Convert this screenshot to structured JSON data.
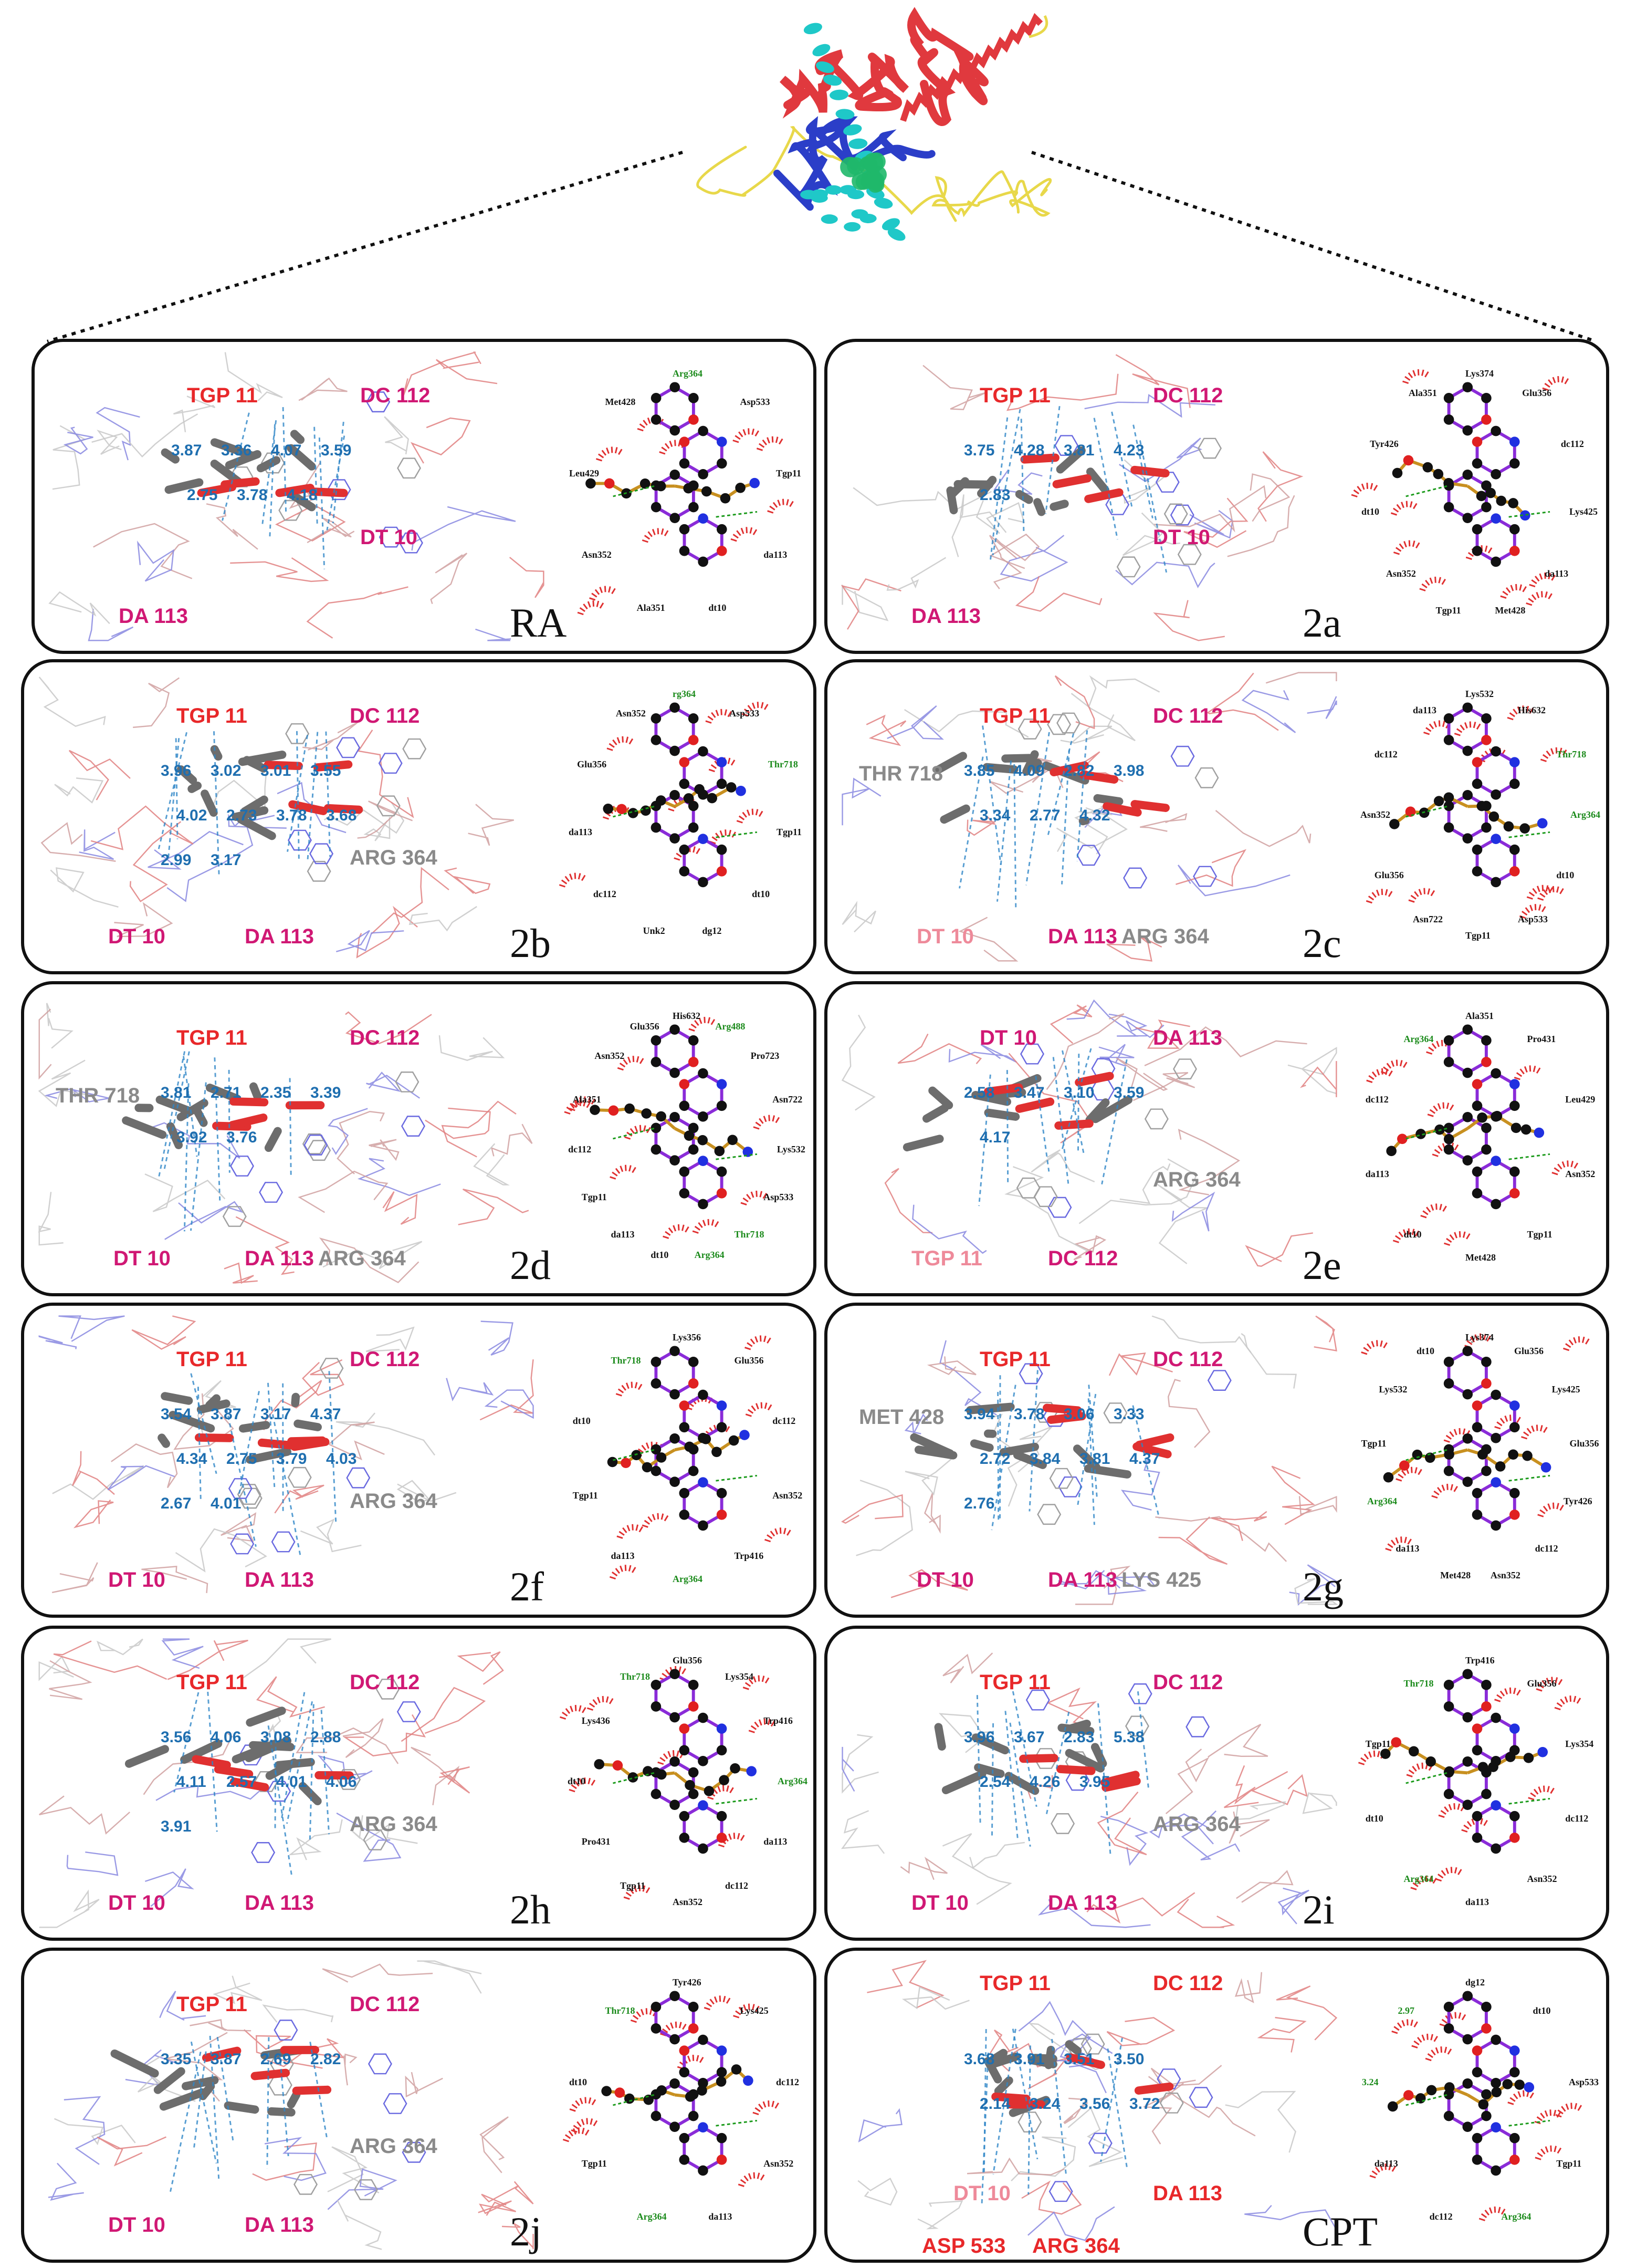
{
  "panels": [
    {
      "id": "RA",
      "label": "RA",
      "residues": [
        {
          "text": "TGP  11",
          "color": "red"
        },
        {
          "text": "DC  112",
          "color": "magenta"
        },
        {
          "text": "DT  10",
          "color": "magenta"
        },
        {
          "text": "DA  113",
          "color": "magenta"
        }
      ],
      "distances": [
        "3.87",
        "3.36",
        "4.07",
        "3.59",
        "2.75",
        "3.78",
        "4.18"
      ],
      "interactions": [
        "Arg364",
        "Asp533",
        "Tgp11",
        "da113",
        "dt10",
        "Ala351",
        "Asn352",
        "Leu429",
        "Met428"
      ]
    },
    {
      "id": "2a",
      "label": "2a",
      "residues": [
        {
          "text": "TGP  11",
          "color": "red"
        },
        {
          "text": "DC  112",
          "color": "magenta"
        },
        {
          "text": "DT  10",
          "color": "magenta"
        },
        {
          "text": "DA  113",
          "color": "magenta"
        }
      ],
      "distances": [
        "3.75",
        "4.28",
        "3.81",
        "4.23",
        "2.83"
      ],
      "interactions": [
        "Lys374",
        "Glu356",
        "dc112",
        "Lys425",
        "da113",
        "Met428",
        "Tgp11",
        "Asn352",
        "dt10",
        "Tyr426",
        "Ala351"
      ]
    },
    {
      "id": "2b",
      "label": "2b",
      "residues": [
        {
          "text": "TGP  11",
          "color": "red"
        },
        {
          "text": "DC  112",
          "color": "magenta"
        },
        {
          "text": "ARG  364",
          "color": "gray"
        },
        {
          "text": "DT  10",
          "color": "magenta"
        },
        {
          "text": "DA  113",
          "color": "magenta"
        }
      ],
      "distances": [
        "3.96",
        "3.02",
        "3.01",
        "3.55",
        "4.02",
        "2.73",
        "3.78",
        "3.68",
        "2.99",
        "3.17"
      ],
      "interactions": [
        "rg364",
        "Asp533",
        "Thr718",
        "Tgp11",
        "dt10",
        "dg12",
        "Unk2",
        "dc112",
        "da113",
        "Glu356",
        "Asn352"
      ]
    },
    {
      "id": "2c",
      "label": "2c",
      "residues": [
        {
          "text": "TGP  11",
          "color": "red"
        },
        {
          "text": "DC  112",
          "color": "magenta"
        },
        {
          "text": "THR  718",
          "color": "gray"
        },
        {
          "text": "ARG  364",
          "color": "gray"
        },
        {
          "text": "DT  10",
          "color": "pink"
        },
        {
          "text": "DA  113",
          "color": "magenta"
        }
      ],
      "distances": [
        "3.85",
        "4.09",
        "2.82",
        "3.98",
        "3.34",
        "2.77",
        "4.32"
      ],
      "interactions": [
        "Lys532",
        "His632",
        "Thr718",
        "Arg364",
        "dt10",
        "Asp533",
        "Tgp11",
        "Asn722",
        "Glu356",
        "Asn352",
        "dc112",
        "da113"
      ]
    },
    {
      "id": "2d",
      "label": "2d",
      "residues": [
        {
          "text": "TGP  11",
          "color": "red"
        },
        {
          "text": "DC  112",
          "color": "magenta"
        },
        {
          "text": "THR  718",
          "color": "gray"
        },
        {
          "text": "ARG  364",
          "color": "gray"
        },
        {
          "text": "DT  10",
          "color": "magenta"
        },
        {
          "text": "DA  113",
          "color": "magenta"
        }
      ],
      "distances": [
        "3.81",
        "2.71",
        "2.35",
        "3.39",
        "3.92",
        "3.76"
      ],
      "interactions": [
        "His632",
        "Arg488",
        "Pro723",
        "Asn722",
        "Lys532",
        "Asp533",
        "Thr718",
        "Arg364",
        "dt10",
        "da113",
        "Tgp11",
        "dc112",
        "Ala351",
        "Asn352",
        "Glu356"
      ]
    },
    {
      "id": "2e",
      "label": "2e",
      "residues": [
        {
          "text": "DT  10",
          "color": "magenta"
        },
        {
          "text": "DA  113",
          "color": "magenta"
        },
        {
          "text": "ARG  364",
          "color": "gray"
        },
        {
          "text": "TGP  11",
          "color": "pink"
        },
        {
          "text": "DC  112",
          "color": "magenta"
        }
      ],
      "distances": [
        "2.58",
        "3.47",
        "3.10",
        "3.59",
        "4.17"
      ],
      "interactions": [
        "Ala351",
        "Pro431",
        "Leu429",
        "Asn352",
        "Tgp11",
        "Met428",
        "dt10",
        "da113",
        "dc112",
        "Arg364"
      ]
    },
    {
      "id": "2f",
      "label": "2f",
      "residues": [
        {
          "text": "TGP  11",
          "color": "red"
        },
        {
          "text": "DC  112",
          "color": "magenta"
        },
        {
          "text": "ARG  364",
          "color": "gray"
        },
        {
          "text": "DT  10",
          "color": "magenta"
        },
        {
          "text": "DA  113",
          "color": "magenta"
        }
      ],
      "distances": [
        "3.54",
        "3.87",
        "3.17",
        "4.37",
        "4.34",
        "2.75",
        "3.79",
        "4.03",
        "2.67",
        "4.01"
      ],
      "interactions": [
        "Lys356",
        "Glu356",
        "dc112",
        "Asn352",
        "Trp416",
        "Arg364",
        "da113",
        "Tgp11",
        "dt10",
        "Thr718"
      ]
    },
    {
      "id": "2g",
      "label": "2g",
      "residues": [
        {
          "text": "TGP  11",
          "color": "red"
        },
        {
          "text": "DC  112",
          "color": "magenta"
        },
        {
          "text": "MET  428",
          "color": "gray"
        },
        {
          "text": "LYS  425",
          "color": "gray"
        },
        {
          "text": "DT  10",
          "color": "magenta"
        },
        {
          "text": "DA  113",
          "color": "magenta"
        }
      ],
      "distances": [
        "3.94",
        "3.78",
        "3.06",
        "3.33",
        "2.72",
        "3.84",
        "3.81",
        "4.37",
        "2.76"
      ],
      "interactions": [
        "Lys374",
        "Glu356",
        "Lys425",
        "Glu356",
        "Tyr426",
        "dc112",
        "Asn352",
        "Met428",
        "da113",
        "Arg364",
        "Tgp11",
        "Lys532",
        "dt10"
      ]
    },
    {
      "id": "2h",
      "label": "2h",
      "residues": [
        {
          "text": "TGP  11",
          "color": "red"
        },
        {
          "text": "DC  112",
          "color": "magenta"
        },
        {
          "text": "ARG  364",
          "color": "gray"
        },
        {
          "text": "DT  10",
          "color": "magenta"
        },
        {
          "text": "DA  113",
          "color": "magenta"
        }
      ],
      "distances": [
        "3.56",
        "4.06",
        "3.08",
        "2.88",
        "4.11",
        "2.57",
        "4.01",
        "4.06",
        "3.91"
      ],
      "interactions": [
        "Glu356",
        "Lys354",
        "Trp416",
        "Arg364",
        "da113",
        "dc112",
        "Asn352",
        "Tgp11",
        "Pro431",
        "dt10",
        "Lys436",
        "Thr718"
      ]
    },
    {
      "id": "2i",
      "label": "2i",
      "residues": [
        {
          "text": "TGP  11",
          "color": "red"
        },
        {
          "text": "DC  112",
          "color": "magenta"
        },
        {
          "text": "ARG  364",
          "color": "gray"
        },
        {
          "text": "DT  10",
          "color": "magenta"
        },
        {
          "text": "DA  113",
          "color": "magenta"
        }
      ],
      "distances": [
        "3.96",
        "3.67",
        "2.83",
        "5.38",
        "2.54",
        "4.26",
        "3.95"
      ],
      "interactions": [
        "Trp416",
        "Glu356",
        "Lys354",
        "dc112",
        "Asn352",
        "da113",
        "Arg364",
        "dt10",
        "Tgp11",
        "Thr718"
      ]
    },
    {
      "id": "2j",
      "label": "2j",
      "residues": [
        {
          "text": "TGP  11",
          "color": "red"
        },
        {
          "text": "DC  112",
          "color": "magenta"
        },
        {
          "text": "ARG  364",
          "color": "gray"
        },
        {
          "text": "DT  10",
          "color": "magenta"
        },
        {
          "text": "DA  113",
          "color": "magenta"
        }
      ],
      "distances": [
        "3.35",
        "3.87",
        "2.69",
        "2.82"
      ],
      "interactions": [
        "Tyr426",
        "Lys425",
        "dc112",
        "Asn352",
        "da113",
        "Arg364",
        "Tgp11",
        "dt10",
        "Thr718"
      ]
    },
    {
      "id": "CPT",
      "label": "CPT",
      "residues": [
        {
          "text": "TGP  11",
          "color": "red"
        },
        {
          "text": "DC  112",
          "color": "red"
        },
        {
          "text": "DT  10",
          "color": "pink"
        },
        {
          "text": "DA  113",
          "color": "red"
        },
        {
          "text": "ASP  533",
          "color": "red"
        },
        {
          "text": "ARG  364",
          "color": "red"
        }
      ],
      "distances": [
        "3.68",
        "3.91",
        "3.51",
        "3.50",
        "2.14",
        "3.24",
        "3.56",
        "3.72"
      ],
      "interactions": [
        "dg12",
        "dt10",
        "Asp533",
        "Tgp11",
        "Arg364",
        "dc112",
        "da113",
        "3.24",
        "2.97"
      ]
    }
  ],
  "colors": {
    "helix": "#e0393e",
    "sheet": "#2b3ec8",
    "coil": "#e8d84a",
    "dna": "#1fc8c8",
    "ligand_site": "#1fb86a",
    "stick_gray": "#6d6d6d",
    "ox_red": "#e03030",
    "h_bond": "#2f86c8",
    "atom_black": "#111111",
    "bond_purple": "#8a2bd8"
  }
}
